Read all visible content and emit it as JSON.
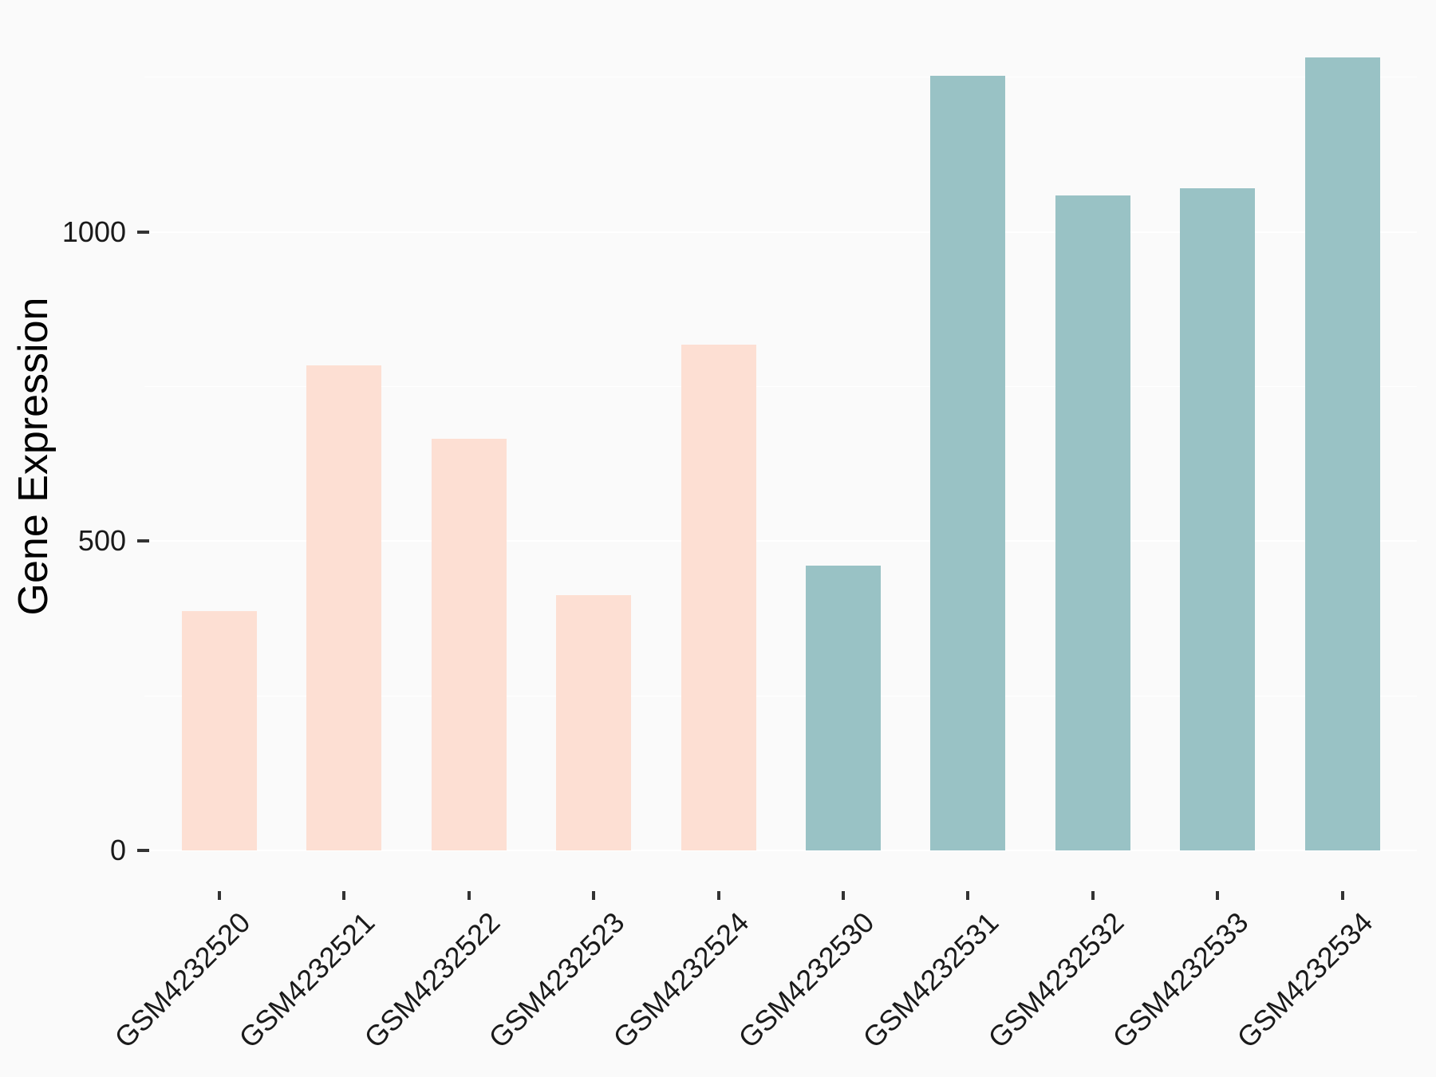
{
  "chart_data": {
    "type": "bar",
    "title": "",
    "xlabel": "",
    "ylabel": "Gene Expression",
    "categories": [
      "GSM4232520",
      "GSM4232521",
      "GSM4232522",
      "GSM4232523",
      "GSM4232524",
      "GSM4232530",
      "GSM4232531",
      "GSM4232532",
      "GSM4232533",
      "GSM4232534"
    ],
    "values": [
      387,
      784,
      666,
      413,
      818,
      460,
      1252,
      1059,
      1071,
      1282
    ],
    "bar_colors": [
      "#FDDFD3",
      "#FDDFD3",
      "#FDDFD3",
      "#FDDFD3",
      "#FDDFD3",
      "#99C2C5",
      "#99C2C5",
      "#99C2C5",
      "#99C2C5",
      "#99C2C5"
    ],
    "color_groups": [
      "pink",
      "pink",
      "pink",
      "pink",
      "pink",
      "teal",
      "teal",
      "teal",
      "teal",
      "teal"
    ],
    "palette": {
      "pink": "#FDDFD3",
      "teal": "#99C2C5"
    },
    "y_axis": {
      "tick_values": [
        0,
        500,
        1000
      ],
      "tick_labels": [
        "0",
        "500",
        "1000"
      ],
      "minor_gridline_values": [
        250,
        750,
        1250
      ],
      "ylim": [
        0,
        1346
      ]
    },
    "style": {
      "background_color": "#FAFAFA",
      "gridline_color": "#FFFFFF",
      "tick_mark_color": "#333333",
      "label_color": "#1A1A1A",
      "legend": "none",
      "grid": "major and minor horizontal white lines",
      "x_label_rotation_deg": 45
    }
  }
}
